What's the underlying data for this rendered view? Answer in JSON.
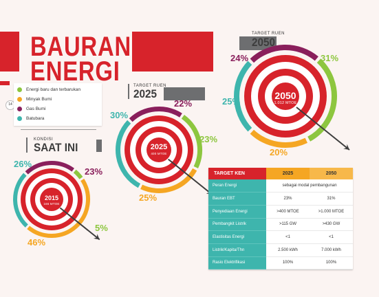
{
  "title": {
    "line1": "BAURAN",
    "line2": "ENERGI"
  },
  "page_number": "14",
  "legend": [
    {
      "label": "Energi baru dan terbarukan",
      "color": "#8dc63f"
    },
    {
      "label": "Minyak Bumi",
      "color": "#f5a623"
    },
    {
      "label": "Gas Bumi",
      "color": "#8a1f5c"
    },
    {
      "label": "Batubara",
      "color": "#3eb5ad"
    }
  ],
  "colors": {
    "ebt": "#8dc63f",
    "minyak": "#f5a623",
    "gas": "#8a1f5c",
    "batubara": "#3eb5ad",
    "red": "#d7232b",
    "grey": "#6d6e70"
  },
  "sections": {
    "now": {
      "small": "KONDISI",
      "big": "SAAT INI",
      "year": "2015",
      "sub": "166 MTOE",
      "values": {
        "ebt": 5,
        "minyak": 46,
        "gas": 23,
        "batubara": 26
      }
    },
    "t2025": {
      "small": "TARGET RUEN",
      "big": "2025",
      "year": "2025",
      "sub": "400 MTOE",
      "values": {
        "ebt": 23,
        "minyak": 25,
        "gas": 22,
        "batubara": 30
      }
    },
    "t2050": {
      "small": "TARGET RUEN",
      "big": "2050",
      "year": "2050",
      "sub": "1.012 MTOE",
      "values": {
        "ebt": 31,
        "minyak": 20,
        "gas": 24,
        "batubara": 25
      }
    }
  },
  "pct_labels": {
    "now": {
      "batubara": "26%",
      "gas": "23%",
      "ebt": "5%",
      "minyak": "46%"
    },
    "t2025": {
      "batubara": "30%",
      "gas": "22%",
      "ebt": "23%",
      "minyak": "25%"
    },
    "t2050": {
      "gas": "24%",
      "ebt": "31%",
      "batubara": "25%",
      "minyak": "20%"
    }
  },
  "table": {
    "header": [
      "TARGET KEN",
      "2025",
      "2050"
    ],
    "rows": [
      {
        "label": "Peran Energi",
        "span": "sebagai modal pembangunan"
      },
      {
        "label": "Bauran EBT",
        "v2025": "23%",
        "v2050": "31%"
      },
      {
        "label": "Penyediaan Energi",
        "v2025": ">400 MTOE",
        "v2050": ">1.000 MTOE"
      },
      {
        "label": "Pembangkit Listrik",
        "v2025": ">115 GW",
        "v2050": ">430 GW"
      },
      {
        "label": "Elastisitas Energi",
        "v2025": "<1",
        "v2050": "<1"
      },
      {
        "label": "Listrik/Kapita/Thn",
        "v2025": "2.500 kWh",
        "v2050": "7.000 kWh"
      },
      {
        "label": "Rasio Elektrifikasi",
        "v2025": "100%",
        "v2050": "100%"
      }
    ]
  }
}
